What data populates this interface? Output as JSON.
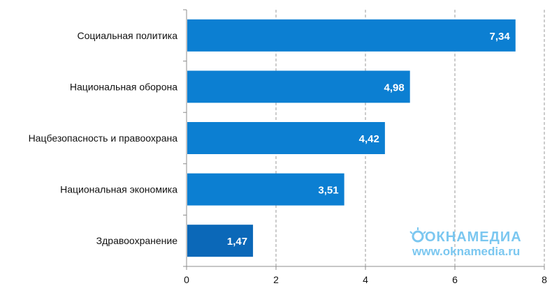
{
  "chart_data": {
    "type": "bar",
    "orientation": "horizontal",
    "categories": [
      "Социальная политика",
      "Национальная оборона",
      "Нацбезопасность и правоохрана",
      "Национальная экономика",
      "Здравоохранение"
    ],
    "values": [
      7.34,
      4.98,
      4.42,
      3.51,
      1.47
    ],
    "value_labels": [
      "7,34",
      "4,98",
      "4,42",
      "3,51",
      "1,47"
    ],
    "xlim": [
      0,
      8
    ],
    "x_ticks": [
      0,
      2,
      4,
      6,
      8
    ],
    "x_tick_labels": [
      "0",
      "2",
      "4",
      "6",
      "8"
    ],
    "grid": true,
    "grid_style": "dashed-vertical",
    "legend": "none",
    "bar_color": "#0c7fd2",
    "last_bar_color": "#0b68b8"
  },
  "watermark": {
    "logo_text": "ОКНАМЕДИА",
    "url": "www.oknamedia.ru",
    "color": "#7bc7f0"
  }
}
